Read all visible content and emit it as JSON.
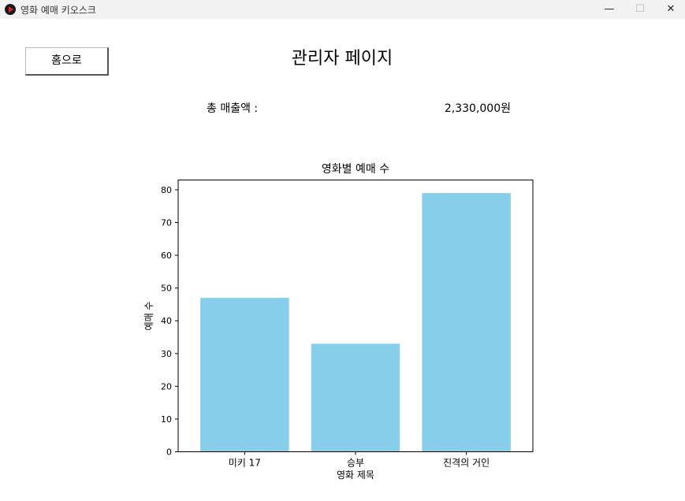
{
  "window": {
    "title": "영화 예매 키오스크",
    "min_glyph": "—",
    "max_glyph": "☐",
    "close_glyph": "✕"
  },
  "nav": {
    "home_label": "홈으로"
  },
  "page": {
    "title": "관리자 페이지"
  },
  "sales": {
    "label": "총 매출액 :",
    "value": "2,330,000원"
  },
  "colors": {
    "bar": "#87ceeb"
  },
  "chart_data": {
    "type": "bar",
    "title": "영화별 예매 수",
    "xlabel": "영화 제목",
    "ylabel": "예매 수",
    "categories": [
      "미키 17",
      "승부",
      "진격의 거인"
    ],
    "values": [
      47,
      33,
      79
    ],
    "ylim": [
      0,
      83
    ],
    "yticks": [
      0,
      10,
      20,
      30,
      40,
      50,
      60,
      70,
      80
    ],
    "grid": false
  }
}
